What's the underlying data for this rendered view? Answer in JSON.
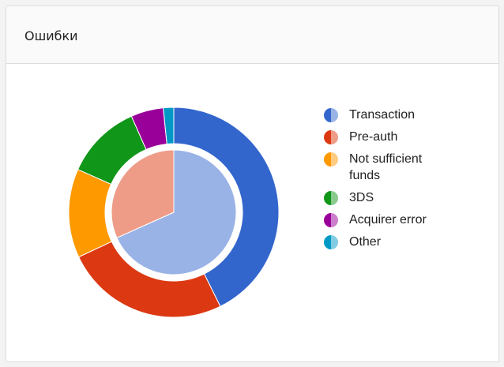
{
  "header": {
    "title": "Ошибки"
  },
  "chart_data": {
    "type": "pie",
    "outer": {
      "categories": [
        "Transaction",
        "Pre-auth",
        "Not sufficient funds",
        "3DS",
        "Acquirer error",
        "Other"
      ],
      "values": [
        42.7,
        25.3,
        13.7,
        11.7,
        5.0,
        1.6
      ],
      "colors": [
        "#3366cc",
        "#dc3912",
        "#ff9900",
        "#109618",
        "#990099",
        "#0099c6"
      ]
    },
    "inner": {
      "categories": [
        "Transaction",
        "Pre-auth"
      ],
      "values": [
        68.3,
        31.7
      ],
      "colors": [
        "#99b3e6",
        "#ee9c88"
      ]
    },
    "legend": [
      {
        "label": "Transaction",
        "dark": "#3366cc",
        "light": "#99b3e6"
      },
      {
        "label": "Pre-auth",
        "dark": "#dc3912",
        "light": "#ee9c88"
      },
      {
        "label": "Not sufficient funds",
        "dark": "#ff9900",
        "light": "#ffcc80"
      },
      {
        "label": "3DS",
        "dark": "#109618",
        "light": "#88cb8c"
      },
      {
        "label": "Acquirer error",
        "dark": "#990099",
        "light": "#cc80cc"
      },
      {
        "label": "Other",
        "dark": "#0099c6",
        "light": "#80cce3"
      }
    ],
    "legend_position": "right"
  }
}
